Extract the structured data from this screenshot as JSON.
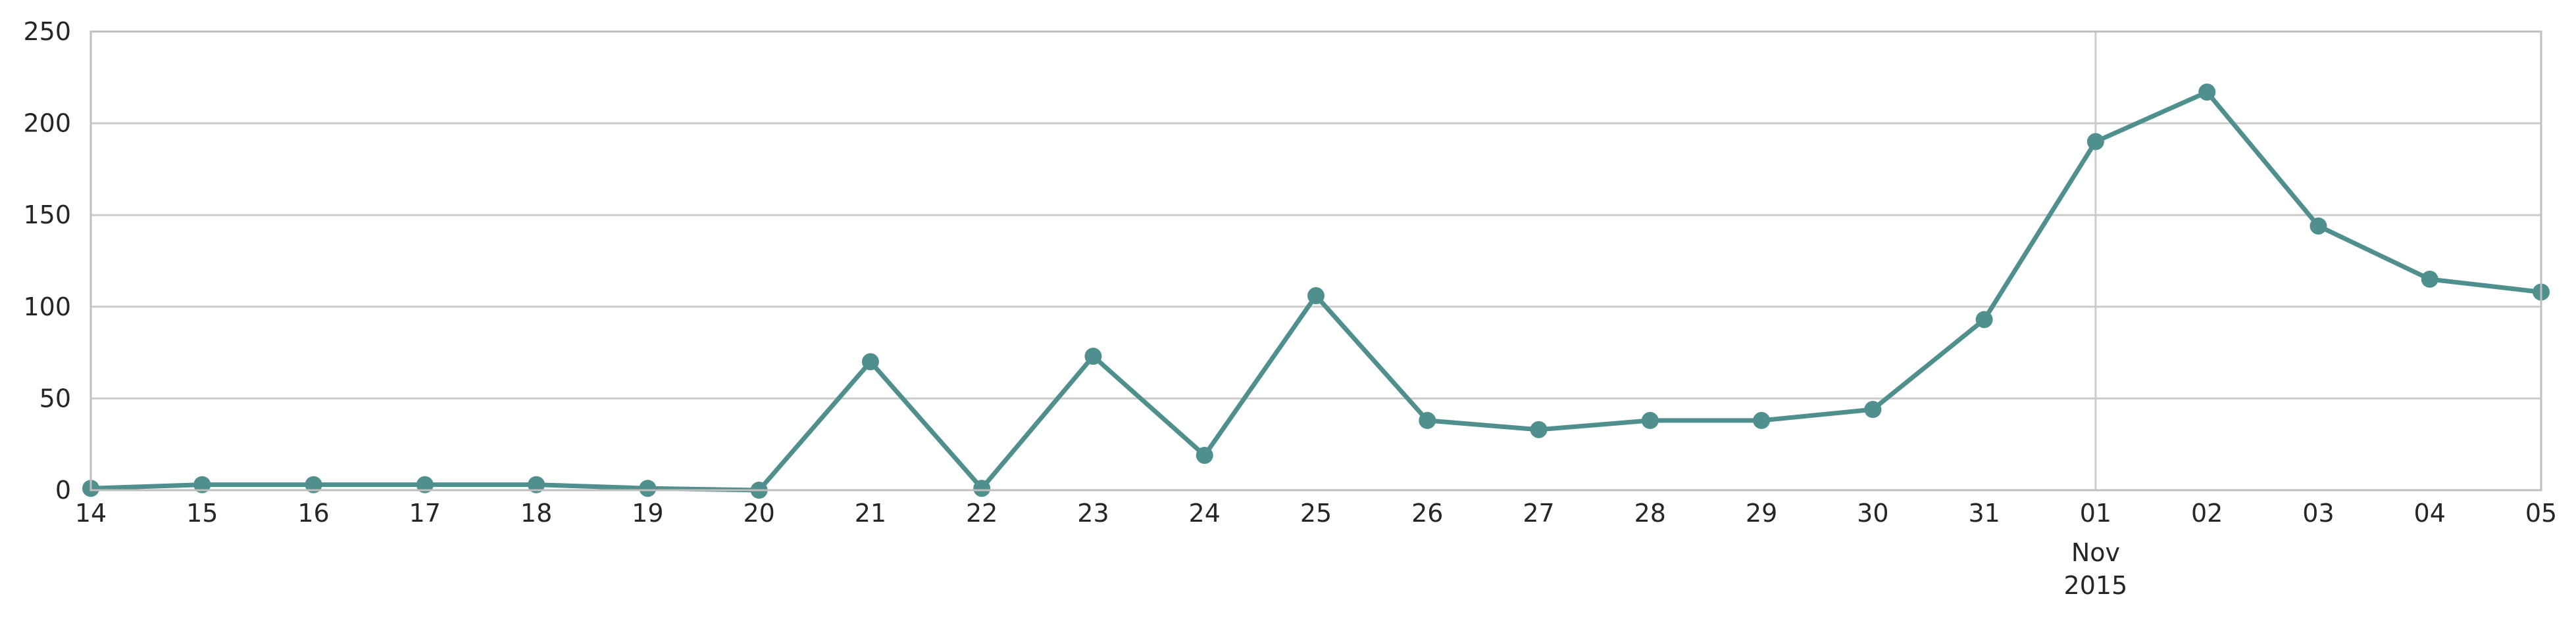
{
  "chart_data": {
    "type": "line",
    "title": "",
    "xlabel": "",
    "ylabel": "",
    "ylim": [
      0,
      250
    ],
    "yticks": [
      0,
      50,
      100,
      150,
      200,
      250
    ],
    "grid": true,
    "x": [
      "2015-10-14",
      "2015-10-15",
      "2015-10-16",
      "2015-10-17",
      "2015-10-18",
      "2015-10-19",
      "2015-10-20",
      "2015-10-21",
      "2015-10-22",
      "2015-10-23",
      "2015-10-24",
      "2015-10-25",
      "2015-10-26",
      "2015-10-27",
      "2015-10-28",
      "2015-10-29",
      "2015-10-30",
      "2015-10-31",
      "2015-11-01",
      "2015-11-02",
      "2015-11-03",
      "2015-11-04",
      "2015-11-05"
    ],
    "xtick_labels": [
      "14",
      "15",
      "16",
      "17",
      "18",
      "19",
      "20",
      "21",
      "22",
      "23",
      "24",
      "25",
      "26",
      "27",
      "28",
      "29",
      "30",
      "31",
      "01",
      "02",
      "03",
      "04",
      "05"
    ],
    "month_label": {
      "index": 18,
      "lines": [
        "Nov",
        "2015"
      ]
    },
    "series": [
      {
        "values": [
          1,
          3,
          3,
          3,
          3,
          1,
          0,
          70,
          1,
          73,
          19,
          106,
          38,
          33,
          38,
          38,
          44,
          93,
          190,
          217,
          144,
          115,
          108
        ]
      }
    ],
    "colors": {
      "line": "#4f8f8e",
      "grid": "#cccccc",
      "axis": "#bfbfbf",
      "text": "#262626"
    }
  }
}
